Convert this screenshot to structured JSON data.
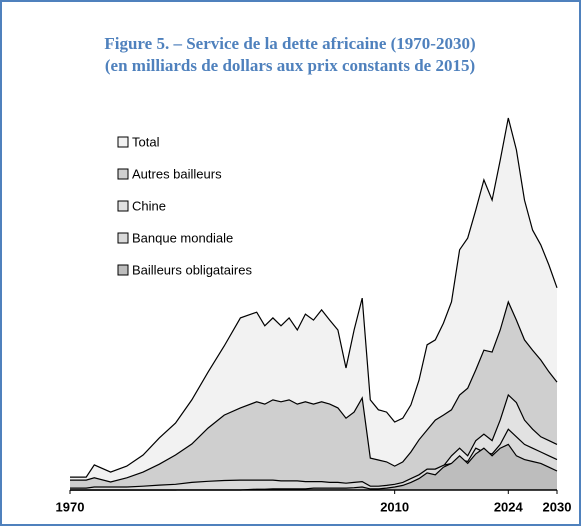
{
  "chart_data": {
    "type": "area",
    "title": "Figure 5. – Service de la dette africaine (1970-2030)",
    "subtitle": "(en milliards de dollars aux prix constants de 2015)",
    "x": [
      1970,
      1972,
      1973,
      1975,
      1977,
      1979,
      1981,
      1983,
      1985,
      1987,
      1989,
      1991,
      1993,
      1994,
      1995,
      1996,
      1997,
      1998,
      1999,
      2000,
      2001,
      2002,
      2003,
      2004,
      2005,
      2006,
      2007,
      2008,
      2009,
      2010,
      2011,
      2012,
      2013,
      2014,
      2015,
      2016,
      2017,
      2018,
      2019,
      2020,
      2021,
      2022,
      2023,
      2024,
      2025,
      2026,
      2027,
      2028,
      2029,
      2030
    ],
    "series": [
      {
        "name": "Total",
        "color": "#f2f2f2",
        "values": [
          3.4,
          3.4,
          6.6,
          4.7,
          6.3,
          9.2,
          13.7,
          17.6,
          23.7,
          31,
          37.9,
          45.3,
          46.8,
          43.2,
          45.3,
          43.2,
          45.3,
          42.1,
          46.3,
          44.7,
          47.4,
          44.7,
          42.1,
          32.1,
          42.1,
          50.5,
          23.7,
          21.1,
          20.5,
          17.9,
          18.9,
          22.4,
          28.9,
          38.2,
          39.5,
          43.9,
          49.5,
          63.2,
          66.3,
          73.7,
          81.6,
          76.3,
          86.8,
          97.9,
          89.5,
          76.3,
          68.4,
          64.5,
          59.2,
          53.2
        ]
      },
      {
        "name": "Autres bailleurs",
        "color": "#cfcfcf",
        "values": [
          2.6,
          2.6,
          3.2,
          2.1,
          3.2,
          4.7,
          6.8,
          9.2,
          12.1,
          16.3,
          19.7,
          21.6,
          23.2,
          22.6,
          23.7,
          23.2,
          23.7,
          22.6,
          23.2,
          22.6,
          23.2,
          22.6,
          21.6,
          18.9,
          20.5,
          24.2,
          8.4,
          7.9,
          7.4,
          6.3,
          7.4,
          10,
          13.2,
          15.8,
          18.4,
          19.7,
          21.1,
          25,
          26.8,
          31.6,
          36.8,
          36.3,
          42.1,
          49.5,
          44.7,
          39.5,
          36.8,
          34.2,
          31.1,
          28.4
        ]
      },
      {
        "name": "Chine",
        "color": "#e2e2e2",
        "values": [
          0,
          0,
          0,
          0,
          0,
          0,
          0,
          0,
          0.3,
          0.5,
          0.5,
          0.8,
          0.8,
          0.8,
          1,
          1,
          1,
          1,
          1,
          1.2,
          1.2,
          1.2,
          1.2,
          1,
          1.3,
          1.5,
          0.5,
          0.5,
          0.8,
          1,
          1.5,
          2.6,
          3.5,
          5,
          5.5,
          6.3,
          9,
          11,
          9,
          13,
          14.7,
          13,
          18.4,
          25,
          23,
          18.4,
          16,
          14,
          13,
          12
        ]
      },
      {
        "name": "Banque mondiale",
        "color": "#dadada",
        "values": [
          0.5,
          0.5,
          0.8,
          0.8,
          0.8,
          1,
          1.3,
          1.5,
          2,
          2.3,
          2.5,
          2.6,
          2.6,
          2.6,
          2.6,
          2.4,
          2.4,
          2.4,
          2.2,
          2.2,
          2.2,
          2,
          2,
          1.8,
          2,
          2.2,
          1,
          1,
          1.2,
          1.5,
          2,
          3,
          4,
          5.5,
          5.5,
          6.5,
          7,
          8,
          7.5,
          11,
          10,
          9.5,
          12,
          16,
          14,
          12,
          11,
          10,
          9,
          8
        ]
      },
      {
        "name": "Bailleurs obligataires",
        "color": "#bdbdbd",
        "values": [
          0,
          0,
          0,
          0,
          0,
          0,
          0,
          0,
          0,
          0,
          0,
          0,
          0.2,
          0.2,
          0.3,
          0.3,
          0.3,
          0.3,
          0.3,
          0.5,
          0.5,
          0.5,
          0.5,
          0.5,
          0.6,
          0.8,
          0.3,
          0.3,
          0.5,
          0.8,
          1.2,
          2,
          3,
          4.5,
          4,
          6,
          7,
          9,
          7,
          9.5,
          11,
          9,
          11,
          12,
          9,
          8,
          7.5,
          7,
          6,
          5
        ]
      }
    ],
    "xlim": [
      1970,
      2030
    ],
    "xticks": [
      1970,
      2010,
      2024,
      2030
    ],
    "ylim": [
      0,
      100
    ],
    "legend": "upper left"
  }
}
